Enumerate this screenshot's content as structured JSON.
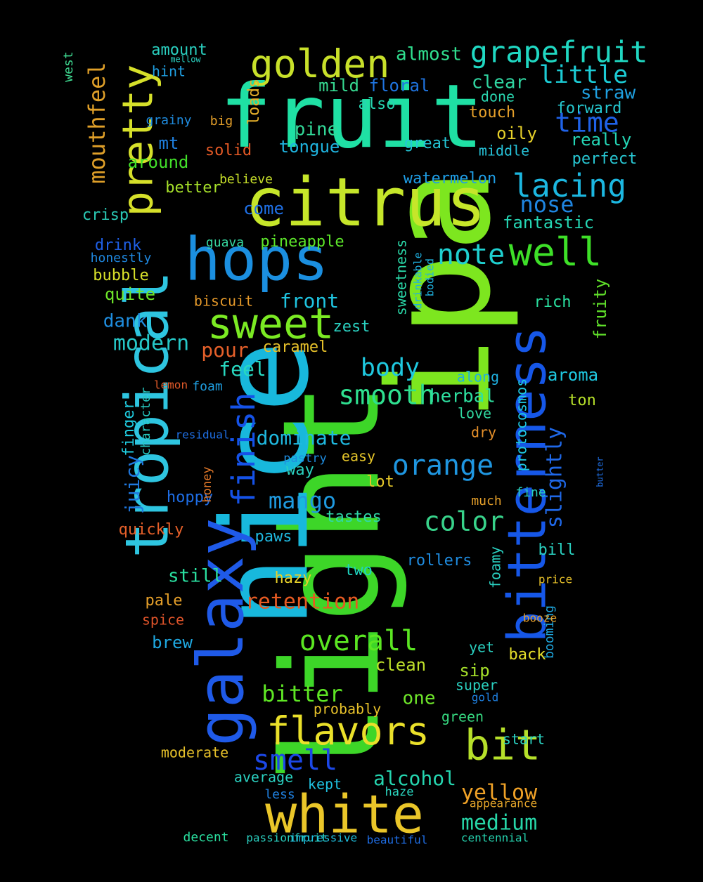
{
  "words": [
    {
      "text": "ipa",
      "color": "#7de61f"
    },
    {
      "text": "light",
      "color": "#3dd628"
    },
    {
      "text": "nice",
      "color": "#18b8dc"
    },
    {
      "text": "fruit",
      "color": "#1fe0a4"
    },
    {
      "text": "citrus",
      "color": "#c6e62a"
    },
    {
      "text": "galaxy",
      "color": "#1f5ae8"
    },
    {
      "text": "tropical",
      "color": "#2ec5e0"
    },
    {
      "text": "white",
      "color": "#eac629"
    },
    {
      "text": "hops",
      "color": "#1b8fe0"
    },
    {
      "text": "bitterness",
      "color": "#1657e8"
    },
    {
      "text": "sweet",
      "color": "#7bea23"
    },
    {
      "text": "pretty",
      "color": "#d6e02a"
    },
    {
      "text": "golden",
      "color": "#c8e02a"
    },
    {
      "text": "grapefruit",
      "color": "#20d8c2"
    },
    {
      "text": "lacing",
      "color": "#1cb7e0"
    },
    {
      "text": "well",
      "color": "#3ee028"
    },
    {
      "text": "bit",
      "color": "#b6e02a"
    },
    {
      "text": "flavors",
      "color": "#eae02a"
    },
    {
      "text": "smell",
      "color": "#1c48e8"
    },
    {
      "text": "overall",
      "color": "#5be622"
    },
    {
      "text": "finish",
      "color": "#1552e8"
    },
    {
      "text": "orange",
      "color": "#1f96e0"
    },
    {
      "text": "note",
      "color": "#1fd0d0"
    },
    {
      "text": "color",
      "color": "#38d28a"
    },
    {
      "text": "body",
      "color": "#1fc9e0"
    },
    {
      "text": "mouthfeel",
      "color": "#e0a029"
    },
    {
      "text": "little",
      "color": "#1ccbd4"
    },
    {
      "text": "smooth",
      "color": "#2fe090"
    },
    {
      "text": "medium",
      "color": "#27d6a8"
    },
    {
      "text": "yellow",
      "color": "#f0a227"
    },
    {
      "text": "mango",
      "color": "#1f9ae0"
    },
    {
      "text": "bitter",
      "color": "#5ee624"
    },
    {
      "text": "retention",
      "color": "#e65a22"
    },
    {
      "text": "alcohol",
      "color": "#25d6b0"
    },
    {
      "text": "dominate",
      "color": "#1fb9e0"
    },
    {
      "text": "nose",
      "color": "#1f85e0"
    },
    {
      "text": "time",
      "color": "#1f62e8"
    },
    {
      "text": "slightly",
      "color": "#1f68e8"
    },
    {
      "text": "modern",
      "color": "#26c8c8"
    },
    {
      "text": "pour",
      "color": "#e6602a"
    },
    {
      "text": "caramel",
      "color": "#e6c02a"
    },
    {
      "text": "feel",
      "color": "#28d8c0"
    },
    {
      "text": "watermelon",
      "color": "#1f9ee6"
    },
    {
      "text": "pineapple",
      "color": "#5de62a"
    },
    {
      "text": "front",
      "color": "#1fc4e0"
    },
    {
      "text": "herbal",
      "color": "#2ee0a0"
    },
    {
      "text": "aroma",
      "color": "#1fc8e0"
    },
    {
      "text": "fantastic",
      "color": "#25d6b4"
    },
    {
      "text": "fruity",
      "color": "#60e02a"
    },
    {
      "text": "juicy",
      "color": "#1f78e0"
    },
    {
      "text": "tongue",
      "color": "#1fb4e0"
    },
    {
      "text": "pine",
      "color": "#32d898"
    },
    {
      "text": "floral",
      "color": "#1f74e0"
    },
    {
      "text": "clear",
      "color": "#30d4a0"
    },
    {
      "text": "almost",
      "color": "#30e090"
    },
    {
      "text": "mild",
      "color": "#36d890"
    },
    {
      "text": "also",
      "color": "#26d4b0"
    },
    {
      "text": "loads",
      "color": "#e6b02a"
    },
    {
      "text": "great",
      "color": "#24c6d6"
    },
    {
      "text": "touch",
      "color": "#e6a02a"
    },
    {
      "text": "done",
      "color": "#2ad6b0"
    },
    {
      "text": "forward",
      "color": "#26c8d0"
    },
    {
      "text": "straw",
      "color": "#1fa0e0"
    },
    {
      "text": "perfect",
      "color": "#28c8d4"
    },
    {
      "text": "really",
      "color": "#24d6b6"
    },
    {
      "text": "oily",
      "color": "#e6d02a"
    },
    {
      "text": "middle",
      "color": "#26c2d8"
    },
    {
      "text": "solid",
      "color": "#e65a26"
    },
    {
      "text": "around",
      "color": "#42e02a"
    },
    {
      "text": "mt",
      "color": "#1f80e0"
    },
    {
      "text": "better",
      "color": "#a6e02a"
    },
    {
      "text": "come",
      "color": "#1f70e6"
    },
    {
      "text": "believe",
      "color": "#c8e02a"
    },
    {
      "text": "crisp",
      "color": "#2ac8b4"
    },
    {
      "text": "drink",
      "color": "#1f60e6"
    },
    {
      "text": "honestly",
      "color": "#1f88e0"
    },
    {
      "text": "bubble",
      "color": "#d8e02a"
    },
    {
      "text": "quite",
      "color": "#6ee62a"
    },
    {
      "text": "dank",
      "color": "#1f8ee0"
    },
    {
      "text": "biscuit",
      "color": "#e69a2a"
    },
    {
      "text": "zest",
      "color": "#2ad0c0"
    },
    {
      "text": "guava",
      "color": "#36d8a0"
    },
    {
      "text": "sweetness",
      "color": "#2ad8a8"
    },
    {
      "text": "drinkable",
      "color": "#1fb0e0"
    },
    {
      "text": "bodied",
      "color": "#1fb4e0"
    },
    {
      "text": "finger",
      "color": "#1fcce0"
    },
    {
      "text": "character",
      "color": "#26c8c0"
    },
    {
      "text": "foam",
      "color": "#1f9ee0"
    },
    {
      "text": "lemon",
      "color": "#e05a2a"
    },
    {
      "text": "love",
      "color": "#30d8a0"
    },
    {
      "text": "dry",
      "color": "#e6902a"
    },
    {
      "text": "ton",
      "color": "#b6e02a"
    },
    {
      "text": "along",
      "color": "#1fb0e0"
    },
    {
      "text": "easy",
      "color": "#e6c62a"
    },
    {
      "text": "lot",
      "color": "#e6c82a"
    },
    {
      "text": "way",
      "color": "#2ad0c0"
    },
    {
      "text": "pastry",
      "color": "#1f8ce0"
    },
    {
      "text": "hoppy",
      "color": "#1f6ee6"
    },
    {
      "text": "quickly",
      "color": "#e6602a"
    },
    {
      "text": "paws",
      "color": "#1fb8e0"
    },
    {
      "text": "tastes",
      "color": "#30d8a8"
    },
    {
      "text": "still",
      "color": "#2ae0a0"
    },
    {
      "text": "hazy",
      "color": "#e6d02a"
    },
    {
      "text": "two",
      "color": "#1fd4c0"
    },
    {
      "text": "pale",
      "color": "#e6a02a"
    },
    {
      "text": "spice",
      "color": "#e0542a"
    },
    {
      "text": "brew",
      "color": "#1fa8e0"
    },
    {
      "text": "clean",
      "color": "#bee02a"
    },
    {
      "text": "one",
      "color": "#6ee62a"
    },
    {
      "text": "probably",
      "color": "#e6c02a"
    },
    {
      "text": "green",
      "color": "#36d880"
    },
    {
      "text": "start",
      "color": "#2ad0c0"
    },
    {
      "text": "moderate",
      "color": "#e6c02a"
    },
    {
      "text": "average",
      "color": "#2ad0c0"
    },
    {
      "text": "kept",
      "color": "#1fc0e0"
    },
    {
      "text": "haze",
      "color": "#2ad6c0"
    },
    {
      "text": "less",
      "color": "#1f80e0"
    },
    {
      "text": "decent",
      "color": "#2ae0a0"
    },
    {
      "text": "passionfruit",
      "color": "#2ad0c0"
    },
    {
      "text": "impressive",
      "color": "#1fc0e0"
    },
    {
      "text": "beautiful",
      "color": "#1f6ee6"
    },
    {
      "text": "centennial",
      "color": "#26d4b0"
    },
    {
      "text": "appearance",
      "color": "#e6a62a"
    },
    {
      "text": "sip",
      "color": "#a6e02a"
    },
    {
      "text": "super",
      "color": "#2ad0c0"
    },
    {
      "text": "back",
      "color": "#e6e02a"
    },
    {
      "text": "booming",
      "color": "#1fa8e0"
    },
    {
      "text": "bill",
      "color": "#2ad0c0"
    },
    {
      "text": "rollers",
      "color": "#1f8ce0"
    },
    {
      "text": "protocosmos",
      "color": "#1fc8e0"
    },
    {
      "text": "fine",
      "color": "#2ad0c0"
    },
    {
      "text": "much",
      "color": "#e6a02a"
    },
    {
      "text": "rich",
      "color": "#2ae0a0"
    },
    {
      "text": "amount",
      "color": "#2ad0c0"
    },
    {
      "text": "hint",
      "color": "#1f9ee0"
    },
    {
      "text": "grainy",
      "color": "#1f8ce0"
    },
    {
      "text": "big",
      "color": "#e6a02a"
    },
    {
      "text": "west",
      "color": "#3ed890"
    },
    {
      "text": "mellow",
      "color": "#2ad0c0"
    },
    {
      "text": "residual",
      "color": "#1f70e6"
    },
    {
      "text": "honey",
      "color": "#e67a2a"
    },
    {
      "text": "butter",
      "color": "#1f70e6"
    },
    {
      "text": "foamy",
      "color": "#2ad0c0"
    },
    {
      "text": "price",
      "color": "#e6c02a"
    },
    {
      "text": "booze",
      "color": "#e6a02a"
    },
    {
      "text": "yet",
      "color": "#2ad0c0"
    },
    {
      "text": "gold",
      "color": "#1f80e0"
    }
  ]
}
